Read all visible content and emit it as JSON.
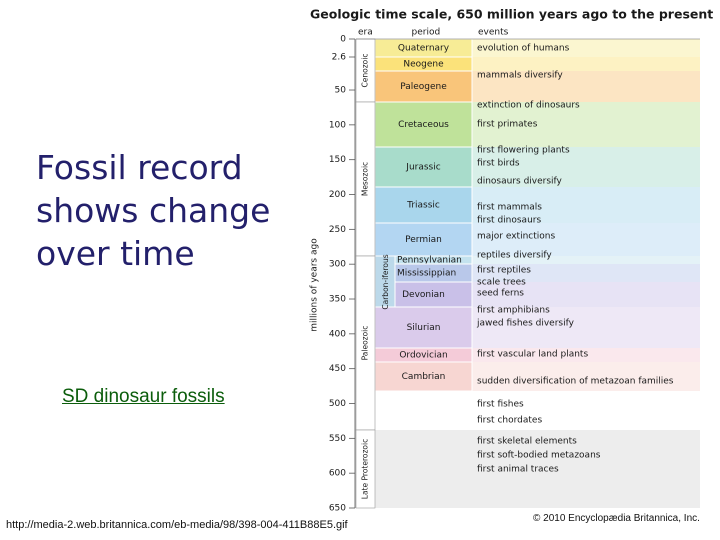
{
  "slide": {
    "title": "Fossil record shows change over time",
    "link": "SD dinosaur fossils",
    "source_url": "http://media-2.web.britannica.com/eb-media/98/398-004-411B88E5.gif",
    "copyright": "© 2010 Encyclopædia Britannica, Inc."
  },
  "figure": {
    "title": "Geologic time scale, 650 million years ago to the present",
    "axis_label": "millions of years ago",
    "headers": [
      "era",
      "period",
      "events"
    ],
    "ticks": [
      0,
      2.6,
      50,
      100,
      150,
      200,
      250,
      300,
      350,
      400,
      450,
      500,
      550,
      600,
      650
    ],
    "eras": [
      "Cenozoic",
      "Mesozoic",
      "Paleozoic",
      "Late Proterozoic"
    ],
    "periods": [
      "Quaternary",
      "Neogene",
      "Paleogene",
      "Cretaceous",
      "Jurassic",
      "Triassic",
      "Permian",
      "Pennsylvanian",
      "Mississippian",
      "Devonian",
      "Silurian",
      "Ordovician",
      "Cambrian"
    ],
    "subera": "Carbon-iferous",
    "events": [
      "evolution of humans",
      "mammals diversify",
      "extinction of dinosaurs",
      "first primates",
      "first flowering plants",
      "first birds",
      "dinosaurs diversify",
      "first mammals",
      "first dinosaurs",
      "major extinctions",
      "reptiles diversify",
      "first reptiles",
      "scale trees",
      "seed ferns",
      "first amphibians",
      "jawed fishes diversify",
      "first vascular land plants",
      "sudden diversification of metazoan families",
      "first fishes",
      "first chordates",
      "first skeletal elements",
      "first soft-bodied metazoans",
      "first animal traces"
    ]
  }
}
